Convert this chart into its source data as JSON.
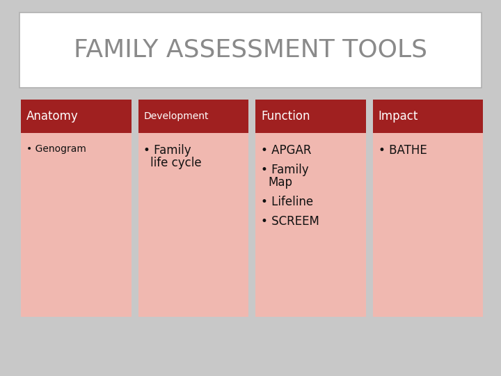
{
  "title": "FAMILY ASSESSMENT TOOLS",
  "background_color": "#c8c8c8",
  "title_box_color": "#ffffff",
  "title_color": "#8a8a8a",
  "header_color_dark": "#a02020",
  "header_color_light": "#f0b8b0",
  "columns": [
    {
      "header": "Anatomy",
      "items": [
        "Genogram"
      ],
      "header_fontsize": 12,
      "items_fontsize": 10
    },
    {
      "header": "Development",
      "items": [
        "Family\nlife cycle"
      ],
      "header_fontsize": 10,
      "items_fontsize": 12
    },
    {
      "header": "Function",
      "items": [
        "APGAR",
        "Family\nMap",
        "Lifeline",
        "SCREEM"
      ],
      "header_fontsize": 12,
      "items_fontsize": 12
    },
    {
      "header": "Impact",
      "items": [
        "BATHE"
      ],
      "header_fontsize": 12,
      "items_fontsize": 12
    }
  ],
  "figsize": [
    7.2,
    5.4
  ],
  "dpi": 100
}
